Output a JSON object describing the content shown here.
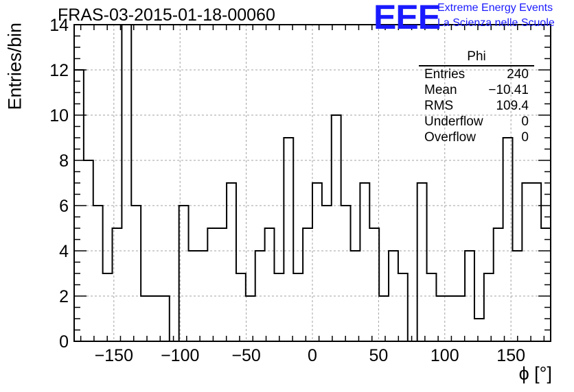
{
  "header": {
    "title": "FRAS-03-2015-01-18-00060",
    "logo_text": "EEE",
    "logo_line1": "Extreme Energy Events",
    "logo_line2": "La Scienza nelle Scuole"
  },
  "stats": {
    "title": "Phi",
    "rows": [
      {
        "label": "Entries",
        "value": "240"
      },
      {
        "label": "Mean",
        "value": "−10.41"
      },
      {
        "label": "RMS",
        "value": "109.4"
      },
      {
        "label": "Underflow",
        "value": "0"
      },
      {
        "label": "Overflow",
        "value": "0"
      }
    ]
  },
  "chart_data": {
    "type": "bar",
    "style": "step-histogram",
    "xlabel": "ϕ [°]",
    "ylabel": "Entries/bin",
    "xlim": [
      -180,
      180
    ],
    "ylim": [
      0,
      14
    ],
    "bin_width": 7.2,
    "x_ticks": [
      -150,
      -100,
      -50,
      0,
      50,
      100,
      150
    ],
    "x_tick_labels": [
      "−150",
      "−100",
      "−50",
      "0",
      "50",
      "100",
      "150"
    ],
    "y_ticks": [
      0,
      2,
      4,
      6,
      8,
      10,
      12,
      14
    ],
    "grid": true,
    "values": [
      12,
      8,
      6,
      3,
      5,
      14,
      6,
      2,
      2,
      2,
      0,
      6,
      4,
      4,
      5,
      5,
      7,
      3,
      2,
      4,
      5,
      3,
      9,
      3,
      5,
      7,
      6,
      10,
      6,
      4,
      7,
      5,
      2,
      4,
      3,
      0,
      7,
      3,
      2,
      2,
      2,
      4,
      1,
      3,
      5,
      9,
      4,
      7,
      7,
      5
    ]
  }
}
